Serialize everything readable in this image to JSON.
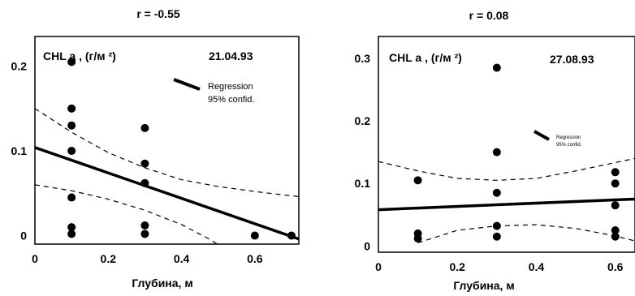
{
  "chart_data": [
    {
      "type": "scatter",
      "title": "r = -0.55",
      "inner_label": "CHL  a , (г/м  ²)",
      "date": "21.04.93",
      "xlabel": "Глубина, м",
      "ylabel": "",
      "xlim": [
        0,
        0.72
      ],
      "ylim": [
        -0.01,
        0.235
      ],
      "xticks": [
        "0",
        "0.2",
        "0.4",
        "0.6"
      ],
      "xtick_values": [
        0,
        0.2,
        0.4,
        0.6
      ],
      "yticks": [
        "0",
        "0.1",
        "0.2"
      ],
      "ytick_values": [
        0,
        0.1,
        0.2
      ],
      "legend": {
        "regression": "Regression",
        "confid": "95% confid."
      },
      "points": [
        {
          "x": 0.1,
          "y": 0.205
        },
        {
          "x": 0.1,
          "y": 0.15
        },
        {
          "x": 0.1,
          "y": 0.13
        },
        {
          "x": 0.1,
          "y": 0.1
        },
        {
          "x": 0.1,
          "y": 0.045
        },
        {
          "x": 0.1,
          "y": 0.01
        },
        {
          "x": 0.1,
          "y": 0.002
        },
        {
          "x": 0.3,
          "y": 0.127
        },
        {
          "x": 0.3,
          "y": 0.085
        },
        {
          "x": 0.3,
          "y": 0.062
        },
        {
          "x": 0.3,
          "y": 0.012
        },
        {
          "x": 0.3,
          "y": 0.002
        },
        {
          "x": 0.6,
          "y": 0.0
        },
        {
          "x": 0.7,
          "y": 0.0
        }
      ],
      "regression": [
        [
          0,
          0.104
        ],
        [
          0.72,
          -0.004
        ]
      ],
      "conf_upper": [
        [
          0,
          0.15
        ],
        [
          0.1,
          0.122
        ],
        [
          0.2,
          0.098
        ],
        [
          0.3,
          0.08
        ],
        [
          0.4,
          0.066
        ],
        [
          0.5,
          0.058
        ],
        [
          0.6,
          0.052
        ],
        [
          0.72,
          0.046
        ]
      ],
      "conf_lower": [
        [
          0,
          0.06
        ],
        [
          0.1,
          0.053
        ],
        [
          0.2,
          0.043
        ],
        [
          0.3,
          0.03
        ],
        [
          0.4,
          0.013
        ],
        [
          0.48,
          -0.005
        ],
        [
          0.53,
          -0.02
        ]
      ]
    },
    {
      "type": "scatter",
      "title": "r = 0.08",
      "inner_label": "CHL  a , (г/м  ²)",
      "date": "27.08.93",
      "xlabel": "Глубина, м",
      "ylabel": "",
      "xlim": [
        0,
        0.65
      ],
      "ylim": [
        -0.01,
        0.335
      ],
      "xticks": [
        "0",
        "0.2",
        "0.4",
        "0.6"
      ],
      "xtick_values": [
        0,
        0.2,
        0.4,
        0.6
      ],
      "yticks": [
        "0",
        "0.1",
        "0.2",
        "0.3"
      ],
      "ytick_values": [
        0,
        0.1,
        0.2,
        0.3
      ],
      "legend": {
        "regression": "Regression",
        "confid": "95% confid."
      },
      "points": [
        {
          "x": 0.1,
          "y": 0.105
        },
        {
          "x": 0.1,
          "y": 0.02
        },
        {
          "x": 0.1,
          "y": 0.012
        },
        {
          "x": 0.3,
          "y": 0.285
        },
        {
          "x": 0.3,
          "y": 0.15
        },
        {
          "x": 0.3,
          "y": 0.085
        },
        {
          "x": 0.3,
          "y": 0.032
        },
        {
          "x": 0.3,
          "y": 0.015
        },
        {
          "x": 0.6,
          "y": 0.118
        },
        {
          "x": 0.6,
          "y": 0.1
        },
        {
          "x": 0.6,
          "y": 0.065
        },
        {
          "x": 0.6,
          "y": 0.025
        },
        {
          "x": 0.6,
          "y": 0.015
        }
      ],
      "regression": [
        [
          0,
          0.058
        ],
        [
          0.65,
          0.075
        ]
      ],
      "conf_upper": [
        [
          0,
          0.135
        ],
        [
          0.1,
          0.12
        ],
        [
          0.2,
          0.108
        ],
        [
          0.3,
          0.105
        ],
        [
          0.4,
          0.108
        ],
        [
          0.5,
          0.12
        ],
        [
          0.65,
          0.14
        ]
      ],
      "conf_lower": [
        [
          0.1,
          0.005
        ],
        [
          0.2,
          0.025
        ],
        [
          0.3,
          0.032
        ],
        [
          0.4,
          0.034
        ],
        [
          0.5,
          0.028
        ],
        [
          0.6,
          0.016
        ],
        [
          0.65,
          0.008
        ]
      ]
    }
  ]
}
